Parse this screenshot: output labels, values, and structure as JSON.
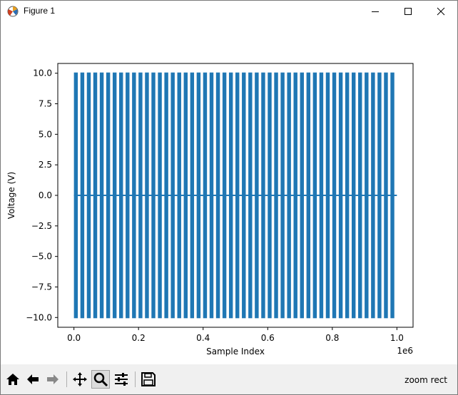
{
  "window": {
    "title": "Figure 1",
    "minimize_icon": "minimize-icon",
    "maximize_icon": "maximize-icon",
    "close_icon": "close-icon"
  },
  "toolbar": {
    "buttons": [
      {
        "name": "home-button",
        "icon": "home-icon"
      },
      {
        "name": "back-button",
        "icon": "back-arrow-icon"
      },
      {
        "name": "forward-button",
        "icon": "forward-arrow-icon"
      },
      {
        "name": "pan-button",
        "icon": "move-arrows-icon"
      },
      {
        "name": "zoom-button",
        "icon": "magnifier-icon",
        "active": true
      },
      {
        "name": "configure-subplots-button",
        "icon": "sliders-icon"
      },
      {
        "name": "save-button",
        "icon": "floppy-disk-icon"
      }
    ],
    "status": "zoom rect"
  },
  "chart_data": {
    "type": "line",
    "xlabel": "Sample Index",
    "ylabel": "Voltage (V)",
    "x_offset_text": "1e6",
    "xlim": [
      -0.05,
      1.05
    ],
    "ylim": [
      -10.8,
      10.8
    ],
    "x_ticks": [
      0.0,
      0.2,
      0.4,
      0.6,
      0.8,
      1.0
    ],
    "x_tick_labels": [
      "0.0",
      "0.2",
      "0.4",
      "0.6",
      "0.8",
      "1.0"
    ],
    "y_ticks": [
      10.0,
      7.5,
      5.0,
      2.5,
      0.0,
      -2.5,
      -5.0,
      -7.5,
      -10.0
    ],
    "y_tick_labels": [
      "10.0",
      "7.5",
      "5.0",
      "2.5",
      "0.0",
      "−2.5",
      "−5.0",
      "−7.5",
      "−10.0"
    ],
    "series": [
      {
        "color": "#1f77b4",
        "signal": "square-wave bursts between -10 V and +10 V separated by 0 V gaps",
        "amplitude": 10.0,
        "x_range": [
          0.0,
          1.0
        ],
        "burst_starts": [
          0.0,
          0.02,
          0.04,
          0.06,
          0.08,
          0.1,
          0.12,
          0.14,
          0.16,
          0.18,
          0.2,
          0.22,
          0.24,
          0.26,
          0.28,
          0.3,
          0.32,
          0.34,
          0.36,
          0.38,
          0.4,
          0.42,
          0.44,
          0.46,
          0.48,
          0.5,
          0.52,
          0.54,
          0.56,
          0.58,
          0.6,
          0.62,
          0.64,
          0.66,
          0.68,
          0.7,
          0.72,
          0.74,
          0.76,
          0.78,
          0.8,
          0.82,
          0.84,
          0.86,
          0.88,
          0.9,
          0.92,
          0.94,
          0.96,
          0.98
        ],
        "burst_length": 0.012
      }
    ]
  }
}
